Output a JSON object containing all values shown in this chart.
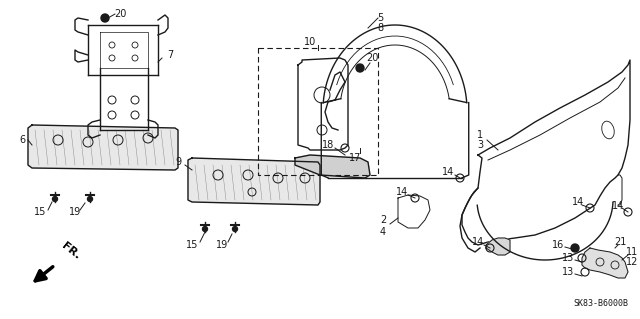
{
  "background_color": "#ffffff",
  "line_color": "#1a1a1a",
  "diagram_code": "SK83-B6000B",
  "figsize": [
    6.4,
    3.19
  ],
  "dpi": 100,
  "xlim": [
    0,
    640
  ],
  "ylim": [
    0,
    319
  ]
}
